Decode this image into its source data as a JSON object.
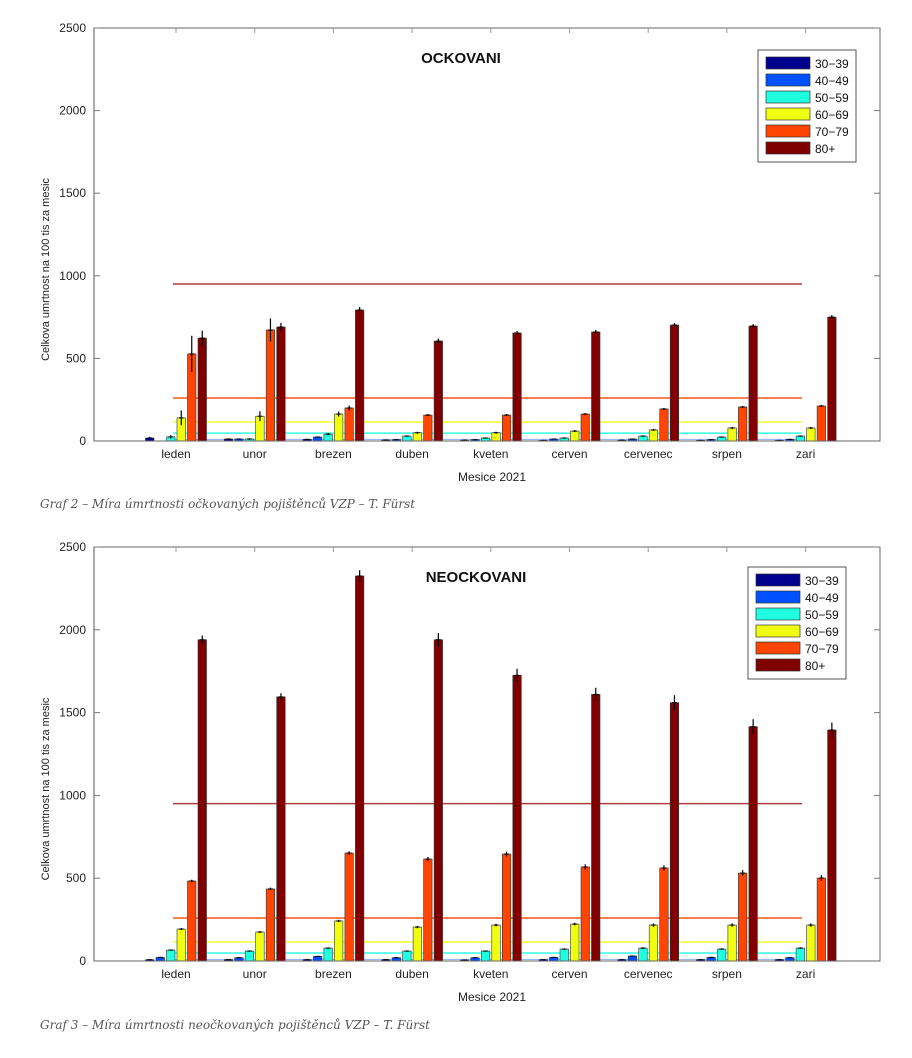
{
  "colors": {
    "30-39": "#00008f",
    "40-49": "#0050ff",
    "50-59": "#20ffdf",
    "60-69": "#f0ff10",
    "70-79": "#ff4500",
    "80+": "#800000",
    "axis": "#888888",
    "ref_line_80": "#a52a2a"
  },
  "captions": [
    "Graf 2 – Míra úmrtnosti očkovaných pojištěnců VZP – T. Fürst",
    "Graf 3 – Míra úmrtnosti neočkovaných pojištěnců VZP – T. Fürst"
  ],
  "chart_data": [
    {
      "type": "bar",
      "title": "OCKOVANI",
      "xlabel": "Mesice 2021",
      "ylabel": "Celkova umrtnost na 100 tis za mesic",
      "ylim": [
        0,
        2500
      ],
      "yticks": [
        "0",
        "500",
        "1000",
        "1500",
        "2000",
        "2500"
      ],
      "legend_position": "top-right",
      "categories": [
        "leden",
        "unor",
        "brezen",
        "duben",
        "kveten",
        "cerven",
        "cervenec",
        "srpen",
        "zari"
      ],
      "series": [
        {
          "name": "30−39",
          "key": "30-39",
          "values": [
            18,
            12,
            10,
            6,
            5,
            4,
            5,
            4,
            4
          ],
          "errors": [
            8,
            4,
            3,
            2,
            2,
            2,
            2,
            2,
            2
          ]
        },
        {
          "name": "40−49",
          "key": "40-49",
          "values": [
            0,
            12,
            24,
            8,
            8,
            12,
            12,
            8,
            10
          ],
          "errors": [
            0,
            4,
            4,
            3,
            3,
            3,
            3,
            3,
            3
          ]
        },
        {
          "name": "50−59",
          "key": "50-59",
          "values": [
            25,
            12,
            42,
            30,
            18,
            18,
            30,
            24,
            30
          ],
          "errors": [
            10,
            5,
            6,
            4,
            4,
            4,
            4,
            4,
            4
          ]
        },
        {
          "name": "60−69",
          "key": "60-69",
          "values": [
            140,
            150,
            163,
            50,
            50,
            60,
            67,
            79,
            79
          ],
          "errors": [
            45,
            30,
            15,
            6,
            6,
            6,
            6,
            6,
            6
          ]
        },
        {
          "name": "70−79",
          "key": "70-79",
          "values": [
            527,
            672,
            200,
            157,
            157,
            163,
            194,
            206,
            212
          ],
          "errors": [
            110,
            70,
            15,
            6,
            6,
            6,
            6,
            6,
            6
          ]
        },
        {
          "name": "80+",
          "key": "80+",
          "values": [
            623,
            690,
            793,
            605,
            654,
            660,
            702,
            696,
            750
          ],
          "errors": [
            45,
            25,
            18,
            15,
            12,
            12,
            12,
            12,
            12
          ]
        }
      ],
      "reference_lines": [
        {
          "key": "80+",
          "value": 950
        },
        {
          "key": "70-79",
          "value": 260
        },
        {
          "key": "60-69",
          "value": 115
        },
        {
          "key": "50-59",
          "value": 48
        },
        {
          "key": "40-49",
          "value": 10
        }
      ]
    },
    {
      "type": "bar",
      "title": "NEOCKOVANI",
      "xlabel": "Mesice 2021",
      "ylabel": "Celkova umrtnost na 100 tis za mesic",
      "ylim": [
        0,
        2500
      ],
      "yticks": [
        "0",
        "500",
        "1000",
        "1500",
        "2000",
        "2500"
      ],
      "legend_position": "top-right",
      "categories": [
        "leden",
        "unor",
        "brezen",
        "duben",
        "kveten",
        "cerven",
        "cervenec",
        "srpen",
        "zari"
      ],
      "series": [
        {
          "name": "30−39",
          "key": "30-39",
          "values": [
            8,
            8,
            8,
            8,
            6,
            8,
            8,
            8,
            8
          ],
          "errors": [
            2,
            2,
            2,
            2,
            2,
            2,
            2,
            2,
            2
          ]
        },
        {
          "name": "40−49",
          "key": "40-49",
          "values": [
            22,
            20,
            28,
            20,
            20,
            22,
            30,
            22,
            20
          ],
          "errors": [
            3,
            3,
            3,
            3,
            3,
            3,
            3,
            3,
            3
          ]
        },
        {
          "name": "50−59",
          "key": "50-59",
          "values": [
            66,
            60,
            78,
            60,
            60,
            72,
            78,
            72,
            78
          ],
          "errors": [
            4,
            4,
            4,
            4,
            4,
            5,
            5,
            5,
            5
          ]
        },
        {
          "name": "60−69",
          "key": "60-69",
          "values": [
            193,
            175,
            242,
            205,
            217,
            223,
            217,
            217,
            217
          ],
          "errors": [
            6,
            6,
            7,
            7,
            8,
            8,
            10,
            10,
            10
          ]
        },
        {
          "name": "70−79",
          "key": "70-79",
          "values": [
            483,
            435,
            652,
            616,
            646,
            568,
            562,
            531,
            501
          ],
          "errors": [
            8,
            8,
            10,
            12,
            14,
            16,
            16,
            18,
            18
          ]
        },
        {
          "name": "80+",
          "key": "80+",
          "values": [
            1940,
            1595,
            2325,
            1940,
            1725,
            1610,
            1560,
            1415,
            1395
          ],
          "errors": [
            25,
            22,
            35,
            40,
            40,
            40,
            45,
            45,
            45
          ]
        }
      ],
      "reference_lines": [
        {
          "key": "80+",
          "value": 950
        },
        {
          "key": "70-79",
          "value": 260
        },
        {
          "key": "60-69",
          "value": 115
        },
        {
          "key": "50-59",
          "value": 48
        },
        {
          "key": "40-49",
          "value": 10
        }
      ]
    }
  ]
}
